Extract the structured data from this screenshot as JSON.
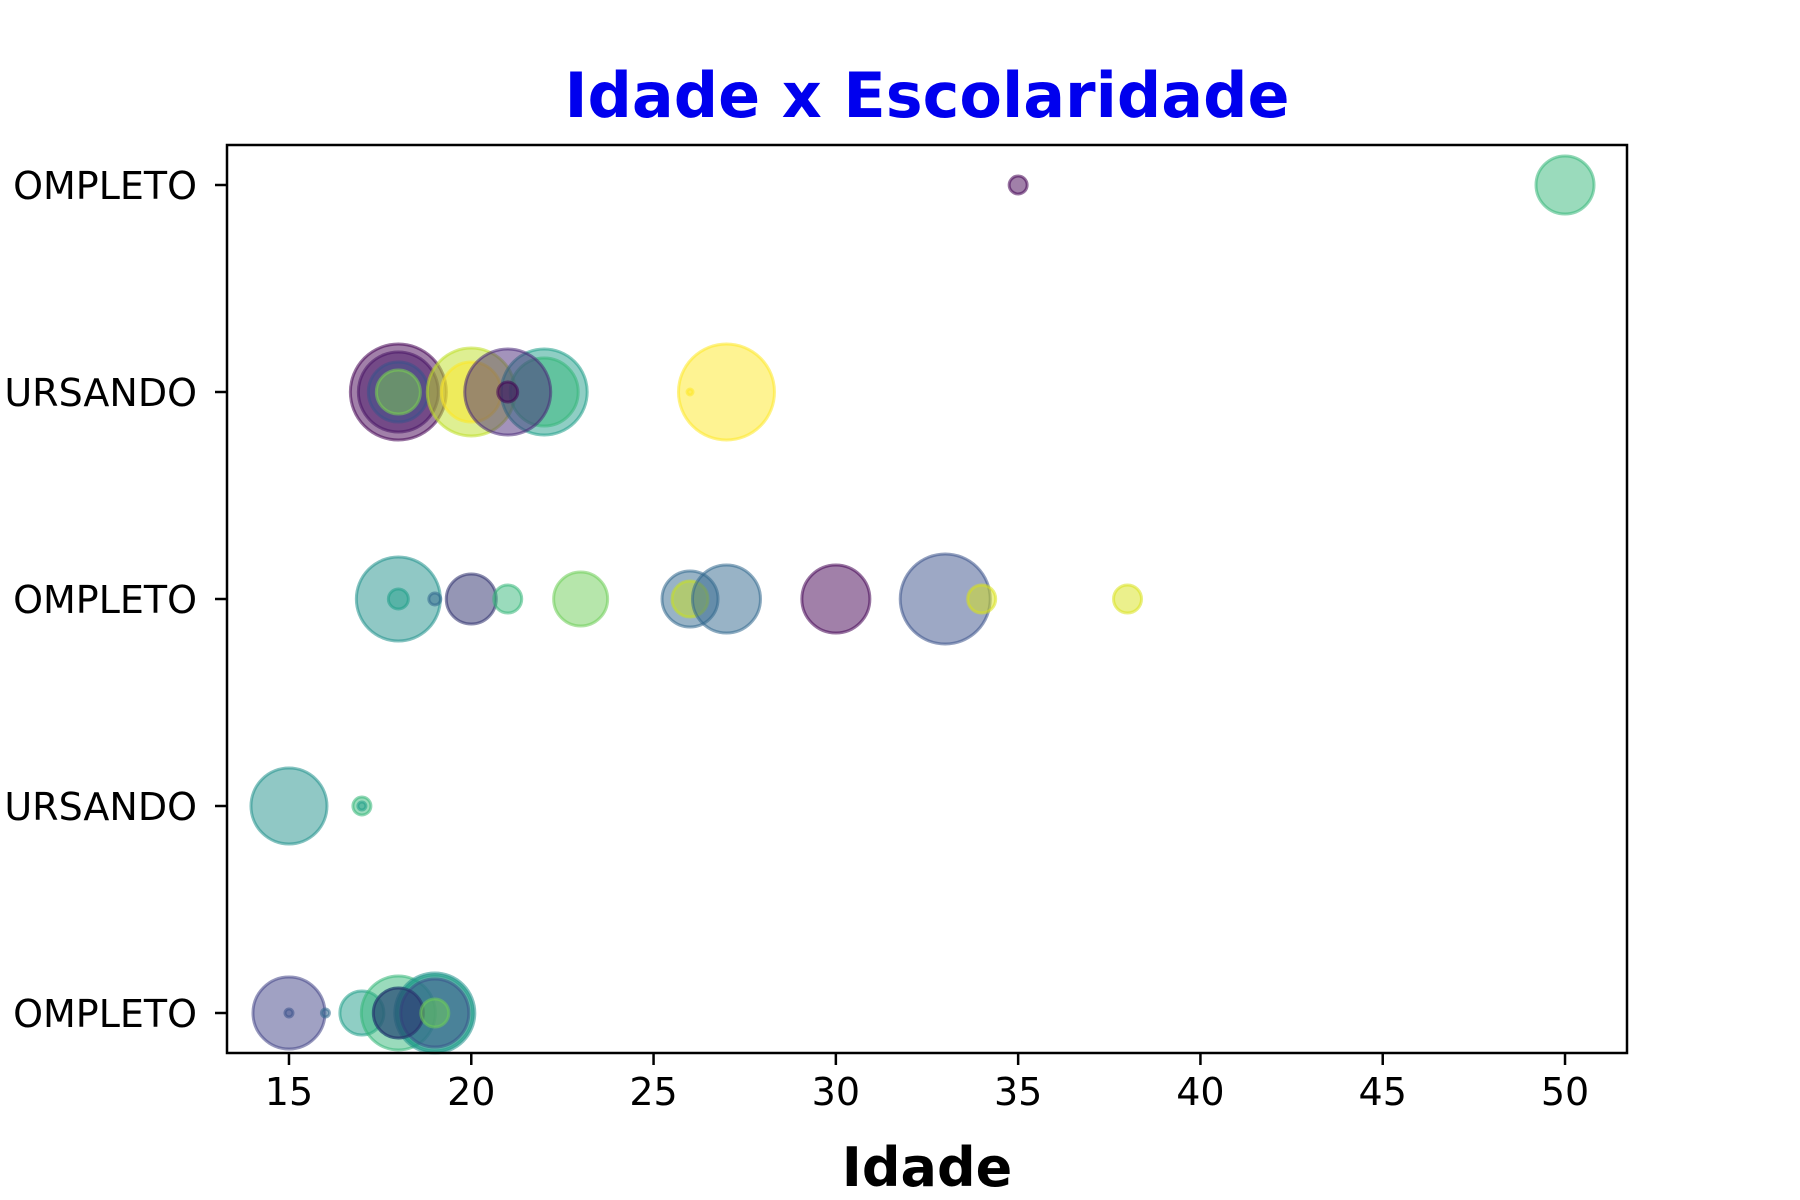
{
  "chart_data": {
    "type": "scatter",
    "title": "Idade x Escolaridade",
    "title_color": "#0000ee",
    "xlabel": "Idade",
    "ylabel": "",
    "xlim": [
      13.3,
      51.7
    ],
    "x_ticks": [
      15,
      20,
      25,
      30,
      35,
      40,
      45,
      50
    ],
    "y_categories": [
      "OMPLETO",
      "URSANDO",
      "OMPLETO",
      "URSANDO",
      "OMPLETO"
    ],
    "grid": false,
    "legend": "none",
    "points": [
      {
        "x": 35,
        "y": 4,
        "r": 9,
        "color": "#440154"
      },
      {
        "x": 50,
        "y": 4,
        "r": 29,
        "color": "#35b779"
      },
      {
        "x": 18,
        "y": 3,
        "r": 48,
        "color": "#440154"
      },
      {
        "x": 18,
        "y": 3,
        "r": 40,
        "color": "#471365"
      },
      {
        "x": 18,
        "y": 3,
        "r": 30,
        "color": "#3b528b"
      },
      {
        "x": 18,
        "y": 3,
        "r": 22,
        "color": "#7ad151"
      },
      {
        "x": 20,
        "y": 3,
        "r": 44,
        "color": "#bddf26"
      },
      {
        "x": 20,
        "y": 3,
        "r": 30,
        "color": "#fde725"
      },
      {
        "x": 22,
        "y": 3,
        "r": 43,
        "color": "#1f9e89"
      },
      {
        "x": 22,
        "y": 3,
        "r": 34,
        "color": "#35b779"
      },
      {
        "x": 21,
        "y": 3,
        "r": 43,
        "color": "#482878"
      },
      {
        "x": 21,
        "y": 3,
        "r": 10,
        "color": "#440154"
      },
      {
        "x": 26,
        "y": 3,
        "r": 3,
        "color": "#fde725"
      },
      {
        "x": 27,
        "y": 3,
        "r": 48,
        "color": "#fde725"
      },
      {
        "x": 18,
        "y": 2,
        "r": 42,
        "color": "#21918c"
      },
      {
        "x": 18,
        "y": 2,
        "r": 10,
        "color": "#1f9e89"
      },
      {
        "x": 19,
        "y": 2,
        "r": 6,
        "color": "#31688e"
      },
      {
        "x": 20,
        "y": 2,
        "r": 25,
        "color": "#2c2d6b"
      },
      {
        "x": 21,
        "y": 2,
        "r": 14,
        "color": "#35b779"
      },
      {
        "x": 23,
        "y": 2,
        "r": 27,
        "color": "#6ece58"
      },
      {
        "x": 26,
        "y": 2,
        "r": 28,
        "color": "#31688e"
      },
      {
        "x": 26,
        "y": 2,
        "r": 18,
        "color": "#c8e020"
      },
      {
        "x": 27,
        "y": 2,
        "r": 34,
        "color": "#31688e"
      },
      {
        "x": 30,
        "y": 2,
        "r": 34,
        "color": "#440154"
      },
      {
        "x": 33,
        "y": 2,
        "r": 45,
        "color": "#3b528b"
      },
      {
        "x": 34,
        "y": 2,
        "r": 14,
        "color": "#d8e219"
      },
      {
        "x": 38,
        "y": 2,
        "r": 14,
        "color": "#d8e219"
      },
      {
        "x": 15,
        "y": 1,
        "r": 38,
        "color": "#21918c"
      },
      {
        "x": 17,
        "y": 1,
        "r": 9,
        "color": "#35b779"
      },
      {
        "x": 17,
        "y": 1,
        "r": 4,
        "color": "#1f9e89"
      },
      {
        "x": 15,
        "y": 0,
        "r": 36,
        "color": "#414487"
      },
      {
        "x": 15,
        "y": 0,
        "r": 4,
        "color": "#3b528b"
      },
      {
        "x": 16,
        "y": 0,
        "r": 4,
        "color": "#31688e"
      },
      {
        "x": 17,
        "y": 0,
        "r": 22,
        "color": "#1f9e89"
      },
      {
        "x": 18,
        "y": 0,
        "r": 37,
        "color": "#35b779"
      },
      {
        "x": 18,
        "y": 0,
        "r": 25,
        "color": "#21918c"
      },
      {
        "x": 19,
        "y": 0,
        "r": 40,
        "color": "#21918c"
      },
      {
        "x": 19,
        "y": 0,
        "r": 38,
        "color": "#1f9e89"
      },
      {
        "x": 19,
        "y": 0,
        "r": 34,
        "color": "#3b528b"
      },
      {
        "x": 18,
        "y": 0,
        "r": 25,
        "color": "#2c2d6b"
      },
      {
        "x": 19,
        "y": 0,
        "r": 14,
        "color": "#6ece58"
      }
    ]
  }
}
